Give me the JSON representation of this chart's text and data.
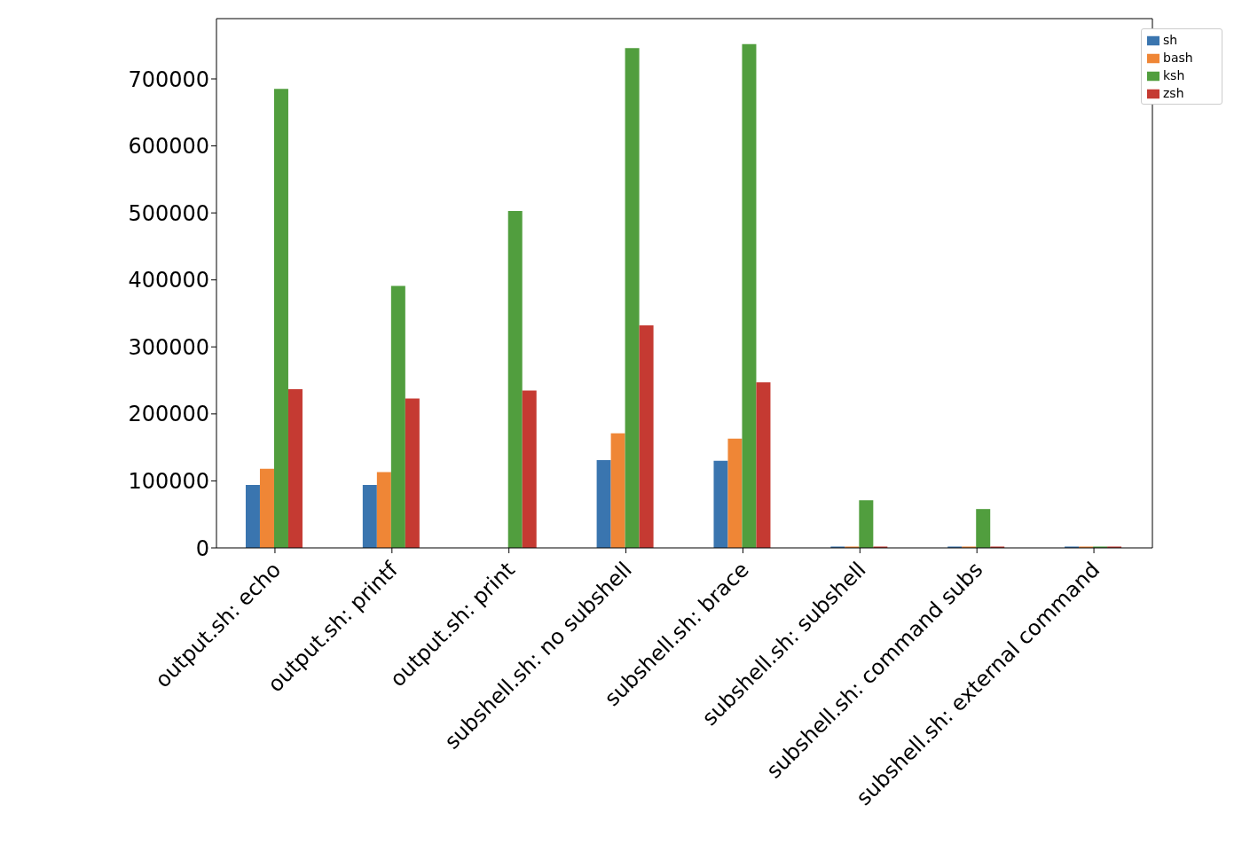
{
  "chart_data": {
    "type": "bar",
    "categories": [
      "output.sh: echo",
      "output.sh: printf",
      "output.sh: print",
      "subshell.sh: no subshell",
      "subshell.sh: brace",
      "subshell.sh: subshell",
      "subshell.sh: command subs",
      "subshell.sh: external command"
    ],
    "series": [
      {
        "name": "sh",
        "color": "#3a75af",
        "values": [
          94000,
          94000,
          null,
          131000,
          130000,
          2000,
          2000,
          2000
        ]
      },
      {
        "name": "bash",
        "color": "#ef8636",
        "values": [
          118000,
          113000,
          null,
          171000,
          163000,
          2000,
          2000,
          2000
        ]
      },
      {
        "name": "ksh",
        "color": "#519e3e",
        "values": [
          685000,
          391000,
          503000,
          746000,
          752000,
          71000,
          58000,
          2000
        ]
      },
      {
        "name": "zsh",
        "color": "#c53a32",
        "values": [
          237000,
          223000,
          235000,
          332000,
          247000,
          2000,
          2000,
          2000
        ]
      }
    ],
    "ylim": [
      0,
      790000
    ],
    "yticks": [
      0,
      100000,
      200000,
      300000,
      400000,
      500000,
      600000,
      700000
    ],
    "grid": false,
    "legend": "top right"
  }
}
